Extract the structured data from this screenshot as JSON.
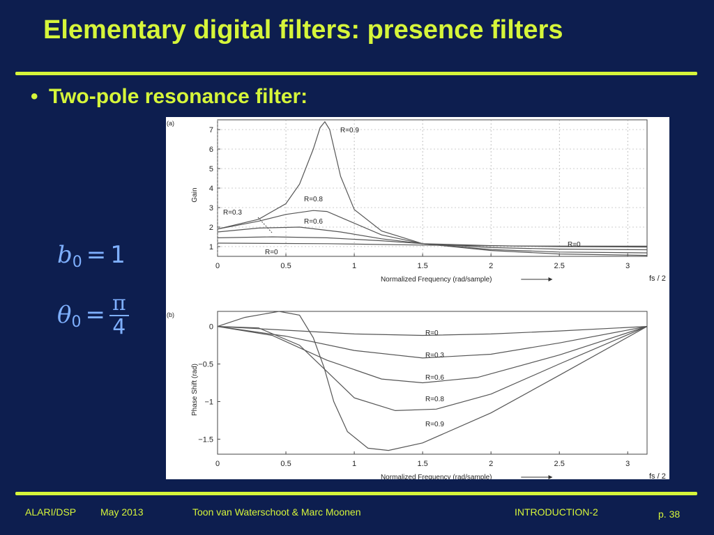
{
  "slide": {
    "title": "Elementary digital filters: presence filters",
    "bullet": "Two-pole resonance filter:",
    "equations": {
      "eq1": {
        "lhs": "b",
        "sub": "0",
        "op": "=",
        "rhs": "1"
      },
      "eq2": {
        "lhs": "θ",
        "sub": "0",
        "op": "=",
        "num": "π",
        "den": "4"
      }
    }
  },
  "figure": {
    "panel_a": {
      "tag": "(a)",
      "ylabel": "Gain",
      "xlabel": "Normalized Frequency (rad/sample)",
      "xend": "fs / 2",
      "xticks": [
        "0",
        "0.5",
        "1",
        "1.5",
        "2",
        "2.5",
        "3"
      ],
      "yticks": [
        "1",
        "2",
        "3",
        "4",
        "5",
        "6",
        "7"
      ],
      "curve_labels": [
        "R=0.9",
        "R=0.8",
        "R=0.6",
        "R=0.3",
        "R=0",
        "R=0"
      ]
    },
    "panel_b": {
      "tag": "(b)",
      "ylabel": "Phase Shift (rad)",
      "xlabel": "Normalized Frequency (rad/sample)",
      "xend": "fs / 2",
      "xticks": [
        "0",
        "0.5",
        "1",
        "1.5",
        "2",
        "2.5",
        "3"
      ],
      "yticks": [
        "0",
        "−0.5",
        "−1",
        "−1.5"
      ],
      "curve_labels": [
        "R=0",
        "R=0.3",
        "R=0.6",
        "R=0.8",
        "R=0.9"
      ]
    }
  },
  "chart_data": [
    {
      "type": "line",
      "title": "(a)",
      "xlabel": "Normalized Frequency (rad/sample)",
      "ylabel": "Gain",
      "xlim": [
        0,
        3.1416
      ],
      "ylim": [
        0.5,
        7.5
      ],
      "grid": true,
      "series": [
        {
          "name": "R=0.9",
          "x": [
            0,
            0.3,
            0.5,
            0.6,
            0.7,
            0.75,
            0.785,
            0.82,
            0.9,
            1.0,
            1.2,
            1.5,
            2.0,
            2.5,
            3.1416
          ],
          "y": [
            1.9,
            2.4,
            3.2,
            4.2,
            6.0,
            7.1,
            7.4,
            7.0,
            4.6,
            2.9,
            1.8,
            1.15,
            0.8,
            0.62,
            0.55
          ]
        },
        {
          "name": "R=0.8",
          "x": [
            0,
            0.3,
            0.5,
            0.7,
            0.8,
            1.0,
            1.2,
            1.5,
            2.0,
            2.5,
            3.1416
          ],
          "y": [
            1.9,
            2.3,
            2.65,
            2.85,
            2.8,
            2.2,
            1.6,
            1.15,
            0.85,
            0.72,
            0.68
          ]
        },
        {
          "name": "R=0.6",
          "x": [
            0,
            0.3,
            0.6,
            0.9,
            1.2,
            1.5,
            2.0,
            2.5,
            3.1416
          ],
          "y": [
            1.75,
            1.95,
            2.0,
            1.75,
            1.4,
            1.15,
            0.95,
            0.87,
            0.84
          ]
        },
        {
          "name": "R=0.3",
          "x": [
            0,
            0.4,
            0.8,
            1.2,
            1.5,
            2.0,
            2.5,
            3.1416
          ],
          "y": [
            1.45,
            1.5,
            1.45,
            1.3,
            1.15,
            1.05,
            1.0,
            0.98
          ]
        },
        {
          "name": "R=0",
          "x": [
            0,
            0.8,
            1.5,
            2.2,
            3.1416
          ],
          "y": [
            1.18,
            1.15,
            1.08,
            1.03,
            1.02
          ]
        }
      ]
    },
    {
      "type": "line",
      "title": "(b)",
      "xlabel": "Normalized Frequency (rad/sample)",
      "ylabel": "Phase Shift (rad)",
      "xlim": [
        0,
        3.1416
      ],
      "ylim": [
        -1.7,
        0.2
      ],
      "grid": false,
      "series": [
        {
          "name": "R=0",
          "x": [
            0,
            0.5,
            1.0,
            1.5,
            2.0,
            2.5,
            3.1416
          ],
          "y": [
            0,
            -0.05,
            -0.1,
            -0.12,
            -0.1,
            -0.06,
            0
          ]
        },
        {
          "name": "R=0.3",
          "x": [
            0,
            0.5,
            1.0,
            1.5,
            2.0,
            2.5,
            3.1416
          ],
          "y": [
            0,
            -0.13,
            -0.32,
            -0.42,
            -0.37,
            -0.22,
            0
          ]
        },
        {
          "name": "R=0.6",
          "x": [
            0,
            0.4,
            0.8,
            1.2,
            1.5,
            1.9,
            2.5,
            3.1416
          ],
          "y": [
            0,
            -0.12,
            -0.45,
            -0.7,
            -0.75,
            -0.68,
            -0.38,
            0
          ]
        },
        {
          "name": "R=0.8",
          "x": [
            0,
            0.3,
            0.6,
            0.8,
            1.0,
            1.3,
            1.6,
            2.0,
            2.5,
            3.1416
          ],
          "y": [
            0,
            -0.02,
            -0.25,
            -0.6,
            -0.95,
            -1.12,
            -1.1,
            -0.9,
            -0.5,
            0
          ]
        },
        {
          "name": "R=0.9",
          "x": [
            0,
            0.2,
            0.45,
            0.6,
            0.7,
            0.78,
            0.85,
            0.95,
            1.1,
            1.25,
            1.5,
            2.0,
            2.5,
            3.1416
          ],
          "y": [
            0,
            0.12,
            0.2,
            0.15,
            -0.15,
            -0.55,
            -1.0,
            -1.4,
            -1.62,
            -1.65,
            -1.55,
            -1.15,
            -0.65,
            0
          ]
        }
      ]
    }
  ],
  "footer": {
    "course": "ALARI/DSP",
    "date": "May 2013",
    "authors": "Toon van Waterschoot & Marc Moonen",
    "section": "INTRODUCTION-2",
    "page": "p. 38"
  }
}
